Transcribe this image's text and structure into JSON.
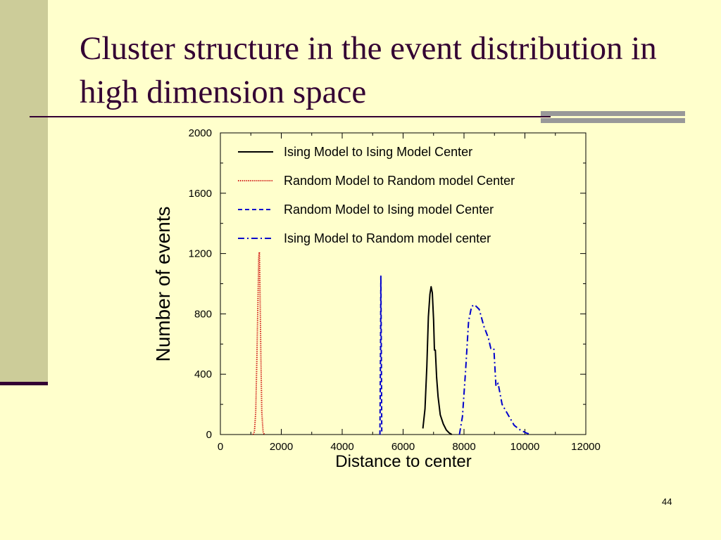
{
  "slide": {
    "title": "Cluster structure in the event distribution in high dimension space",
    "page_number": "44",
    "colors": {
      "background": "#FFFFCC",
      "sidebar": "#CCCC99",
      "title_text": "#330033",
      "accent": "#999999"
    }
  },
  "chart_data": {
    "type": "line",
    "title": "",
    "xlabel": "Distance to center",
    "ylabel": "Number of events",
    "xlim": [
      0,
      12000
    ],
    "ylim": [
      0,
      2000
    ],
    "x_ticks": [
      0,
      2000,
      4000,
      6000,
      8000,
      10000,
      12000
    ],
    "y_ticks": [
      0,
      400,
      800,
      1200,
      1600,
      2000
    ],
    "grid": false,
    "legend_position": "top-right inside",
    "series": [
      {
        "name": "Ising Model to Ising Model Center",
        "color": "#000000",
        "dash": "solid",
        "points": [
          [
            6650,
            40
          ],
          [
            6720,
            170
          ],
          [
            6780,
            450
          ],
          [
            6830,
            780
          ],
          [
            6880,
            930
          ],
          [
            6920,
            980
          ],
          [
            6960,
            940
          ],
          [
            7000,
            760
          ],
          [
            7030,
            560
          ],
          [
            7060,
            560
          ],
          [
            7100,
            380
          ],
          [
            7150,
            250
          ],
          [
            7220,
            130
          ],
          [
            7320,
            70
          ],
          [
            7420,
            30
          ],
          [
            7520,
            10
          ],
          [
            7600,
            0
          ]
        ]
      },
      {
        "name": "Random Model to Random model Center",
        "color": "#CC0000",
        "dash": "dotted",
        "points": [
          [
            1080,
            0
          ],
          [
            1120,
            20
          ],
          [
            1160,
            150
          ],
          [
            1200,
            520
          ],
          [
            1240,
            950
          ],
          [
            1260,
            1180
          ],
          [
            1280,
            1210
          ],
          [
            1300,
            980
          ],
          [
            1330,
            520
          ],
          [
            1360,
            150
          ],
          [
            1400,
            20
          ],
          [
            1440,
            0
          ]
        ]
      },
      {
        "name": "Random Model to Ising model Center",
        "color": "#0000CC",
        "dash": "dashed",
        "points": [
          [
            5240,
            0
          ],
          [
            5260,
            600
          ],
          [
            5270,
            1050
          ],
          [
            5280,
            700
          ],
          [
            5300,
            0
          ]
        ]
      },
      {
        "name": "Ising Model to Random model center",
        "color": "#0000CC",
        "dash": "dash-dot",
        "points": [
          [
            7850,
            0
          ],
          [
            7950,
            120
          ],
          [
            8050,
            420
          ],
          [
            8150,
            750
          ],
          [
            8250,
            850
          ],
          [
            8350,
            860
          ],
          [
            8500,
            830
          ],
          [
            8650,
            720
          ],
          [
            8800,
            640
          ],
          [
            8880,
            570
          ],
          [
            8980,
            570
          ],
          [
            9050,
            320
          ],
          [
            9120,
            340
          ],
          [
            9250,
            200
          ],
          [
            9450,
            130
          ],
          [
            9650,
            60
          ],
          [
            9850,
            30
          ],
          [
            10050,
            10
          ],
          [
            10200,
            0
          ]
        ]
      }
    ]
  }
}
